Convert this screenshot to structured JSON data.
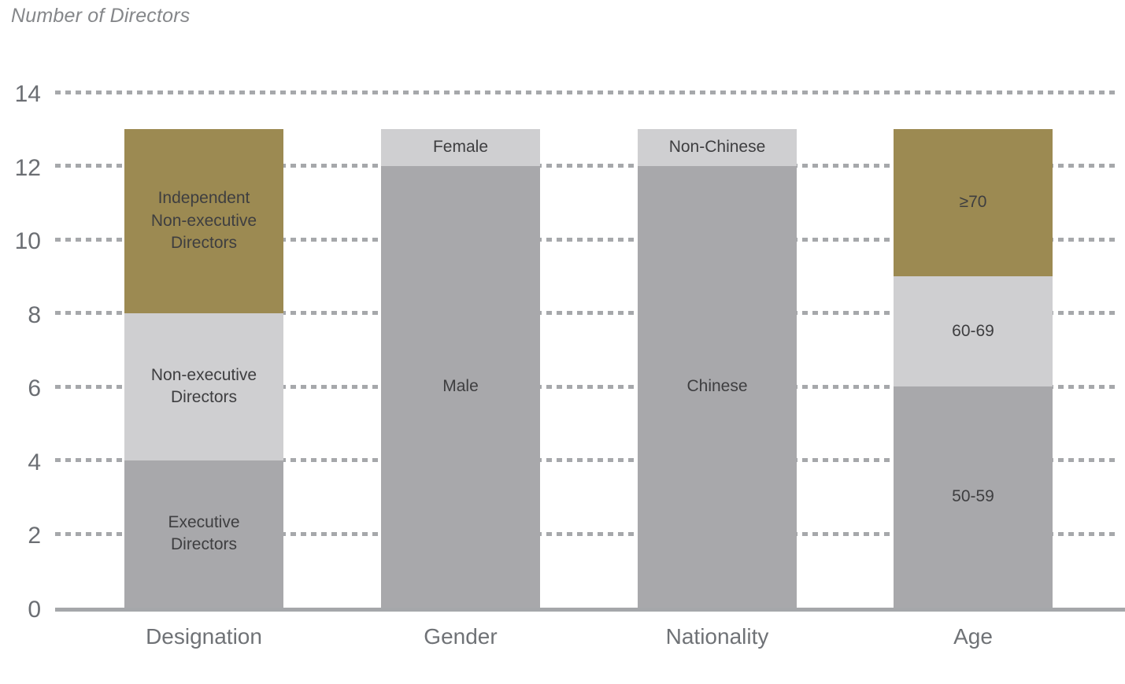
{
  "title": "Number of Directors",
  "colors": {
    "gold": "#9C8A52",
    "gray": "#A8A8AB",
    "light_gray": "#CFCFD1",
    "grid": "#A6A8AB",
    "baseline": "#A5A7AA",
    "axis_text": "#6B6E73",
    "category_text": "#6F7276",
    "segment_text": "#3E3E40",
    "title_text": "#85878A"
  },
  "chart_data": {
    "type": "bar",
    "stacked": true,
    "title": "Number of Directors",
    "xlabel": "",
    "ylabel": "Number of Directors",
    "ylim": [
      0,
      14
    ],
    "yticks": [
      0,
      2,
      4,
      6,
      8,
      10,
      12,
      14
    ],
    "grid": "horizontal-dashed",
    "legend_position": "none (labels inside segments)",
    "categories": [
      "Designation",
      "Gender",
      "Nationality",
      "Age"
    ],
    "bars": [
      {
        "category": "Designation",
        "total": 13,
        "segments": [
          {
            "label": "Executive Directors",
            "label_lines": [
              "Executive",
              "Directors"
            ],
            "value": 4,
            "color_key": "gray"
          },
          {
            "label": "Non-executive Directors",
            "label_lines": [
              "Non-executive",
              "Directors"
            ],
            "value": 4,
            "color_key": "light_gray"
          },
          {
            "label": "Independent Non-executive Directors",
            "label_lines": [
              "Independent",
              "Non-executive",
              "Directors"
            ],
            "value": 5,
            "color_key": "gold"
          }
        ]
      },
      {
        "category": "Gender",
        "total": 13,
        "segments": [
          {
            "label": "Male",
            "label_lines": [
              "Male"
            ],
            "value": 12,
            "color_key": "gray"
          },
          {
            "label": "Female",
            "label_lines": [
              "Female"
            ],
            "value": 1,
            "color_key": "light_gray"
          }
        ]
      },
      {
        "category": "Nationality",
        "total": 13,
        "segments": [
          {
            "label": "Chinese",
            "label_lines": [
              "Chinese"
            ],
            "value": 12,
            "color_key": "gray"
          },
          {
            "label": "Non-Chinese",
            "label_lines": [
              "Non-Chinese"
            ],
            "value": 1,
            "color_key": "light_gray"
          }
        ]
      },
      {
        "category": "Age",
        "total": 13,
        "segments": [
          {
            "label": "50-59",
            "label_lines": [
              "50-59"
            ],
            "value": 6,
            "color_key": "gray"
          },
          {
            "label": "60-69",
            "label_lines": [
              "60-69"
            ],
            "value": 3,
            "color_key": "light_gray"
          },
          {
            "label": "≥70",
            "label_lines": [
              "≥70"
            ],
            "value": 4,
            "color_key": "gold"
          }
        ]
      }
    ]
  }
}
